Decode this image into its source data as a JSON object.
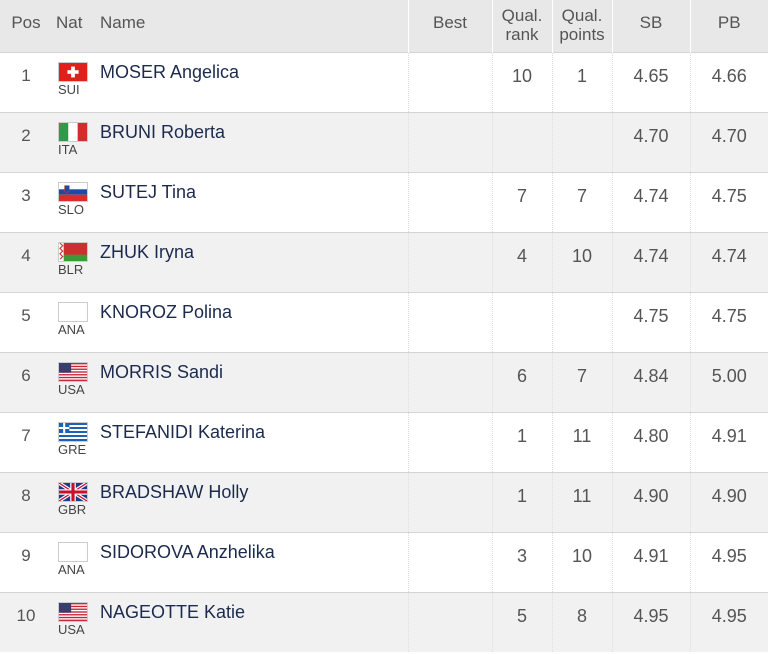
{
  "headers": {
    "pos": "Pos",
    "nat": "Nat",
    "name": "Name",
    "best": "Best",
    "qual_rank_1": "Qual.",
    "qual_rank_2": "rank",
    "qual_points_1": "Qual.",
    "qual_points_2": "points",
    "sb": "SB",
    "pb": "PB"
  },
  "rows": [
    {
      "pos": "1",
      "nat": "SUI",
      "flag": "flag-switzerland-icon",
      "name": "MOSER Angelica",
      "best": "",
      "qual_rank": "10",
      "qual_points": "1",
      "sb": "4.65",
      "pb": "4.66"
    },
    {
      "pos": "2",
      "nat": "ITA",
      "flag": "flag-italy-icon",
      "name": "BRUNI Roberta",
      "best": "",
      "qual_rank": "",
      "qual_points": "",
      "sb": "4.70",
      "pb": "4.70"
    },
    {
      "pos": "3",
      "nat": "SLO",
      "flag": "flag-slovenia-icon",
      "name": "SUTEJ Tina",
      "best": "",
      "qual_rank": "7",
      "qual_points": "7",
      "sb": "4.74",
      "pb": "4.75"
    },
    {
      "pos": "4",
      "nat": "BLR",
      "flag": "flag-belarus-icon",
      "name": "ZHUK Iryna",
      "best": "",
      "qual_rank": "4",
      "qual_points": "10",
      "sb": "4.74",
      "pb": "4.74"
    },
    {
      "pos": "5",
      "nat": "ANA",
      "flag": "flag-blank-icon",
      "name": "KNOROZ Polina",
      "best": "",
      "qual_rank": "",
      "qual_points": "",
      "sb": "4.75",
      "pb": "4.75"
    },
    {
      "pos": "6",
      "nat": "USA",
      "flag": "flag-usa-icon",
      "name": "MORRIS Sandi",
      "best": "",
      "qual_rank": "6",
      "qual_points": "7",
      "sb": "4.84",
      "pb": "5.00"
    },
    {
      "pos": "7",
      "nat": "GRE",
      "flag": "flag-greece-icon",
      "name": "STEFANIDI Katerina",
      "best": "",
      "qual_rank": "1",
      "qual_points": "11",
      "sb": "4.80",
      "pb": "4.91"
    },
    {
      "pos": "8",
      "nat": "GBR",
      "flag": "flag-great-britain-icon",
      "name": "BRADSHAW Holly",
      "best": "",
      "qual_rank": "1",
      "qual_points": "11",
      "sb": "4.90",
      "pb": "4.90"
    },
    {
      "pos": "9",
      "nat": "ANA",
      "flag": "flag-blank-icon",
      "name": "SIDOROVA Anzhelika",
      "best": "",
      "qual_rank": "3",
      "qual_points": "10",
      "sb": "4.91",
      "pb": "4.95"
    },
    {
      "pos": "10",
      "nat": "USA",
      "flag": "flag-usa-icon",
      "name": "NAGEOTTE Katie",
      "best": "",
      "qual_rank": "5",
      "qual_points": "8",
      "sb": "4.95",
      "pb": "4.95"
    }
  ]
}
